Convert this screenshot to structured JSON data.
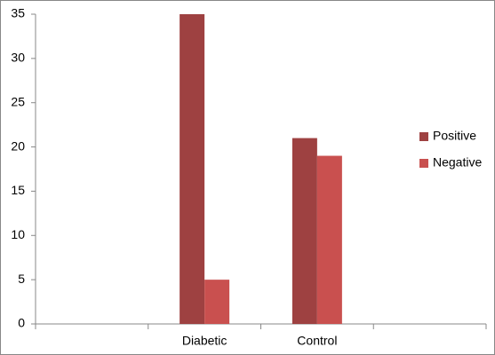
{
  "chart_data": {
    "type": "bar",
    "categories": [
      null,
      "Diabetic",
      "Control",
      null
    ],
    "series": [
      {
        "name": "Positive",
        "color": "#9e4141",
        "values": [
          null,
          35,
          21,
          null
        ]
      },
      {
        "name": "Negative",
        "color": "#c9504f",
        "values": [
          null,
          5,
          19,
          null
        ]
      }
    ],
    "ylim": [
      0,
      35
    ],
    "yticks": [
      0,
      5,
      10,
      15,
      20,
      25,
      30,
      35
    ],
    "grid": false,
    "legend": "right"
  }
}
